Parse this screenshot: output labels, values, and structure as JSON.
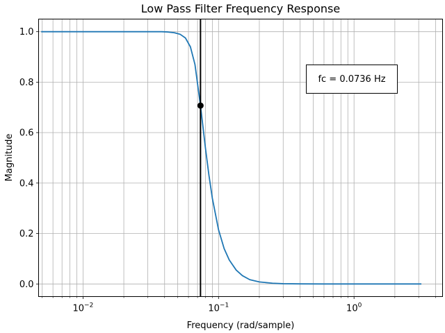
{
  "chart_data": {
    "type": "line",
    "title": "Low Pass Filter Frequency Response",
    "xlabel": "Frequency (rad/sample)",
    "ylabel": "Magnitude",
    "xscale": "log",
    "xlim": [
      0.0047,
      4.5
    ],
    "ylim": [
      -0.05,
      1.05
    ],
    "grid": "on (major and minor)",
    "x_ticks": [
      {
        "value": 0.01,
        "base": "10",
        "exp": "−2"
      },
      {
        "value": 0.1,
        "base": "10",
        "exp": "−1"
      },
      {
        "value": 1,
        "base": "10",
        "exp": "0"
      }
    ],
    "y_ticks": [
      "0.0",
      "0.2",
      "0.4",
      "0.6",
      "0.8",
      "1.0"
    ],
    "series": [
      {
        "color": "#1f77b4",
        "x": [
          0.00491,
          0.01,
          0.02,
          0.03,
          0.038,
          0.042,
          0.047,
          0.052,
          0.057,
          0.062,
          0.067,
          0.0736,
          0.08,
          0.085,
          0.09,
          0.1,
          0.11,
          0.12,
          0.135,
          0.15,
          0.17,
          0.2,
          0.25,
          0.3,
          0.4,
          0.6,
          1.0,
          2.0,
          3.14
        ],
        "y": [
          1.0,
          1.0,
          1.0,
          1.0,
          1.0,
          0.999,
          0.996,
          0.99,
          0.975,
          0.94,
          0.87,
          0.707,
          0.54,
          0.43,
          0.34,
          0.215,
          0.14,
          0.095,
          0.055,
          0.033,
          0.017,
          0.008,
          0.003,
          0.001,
          0.0003,
          0.0,
          0.0,
          0.0,
          0.0
        ]
      }
    ],
    "cutoff": {
      "x": 0.0736,
      "y": 0.707,
      "color": "#000000"
    },
    "annotation": "fc = 0.0736 Hz"
  }
}
